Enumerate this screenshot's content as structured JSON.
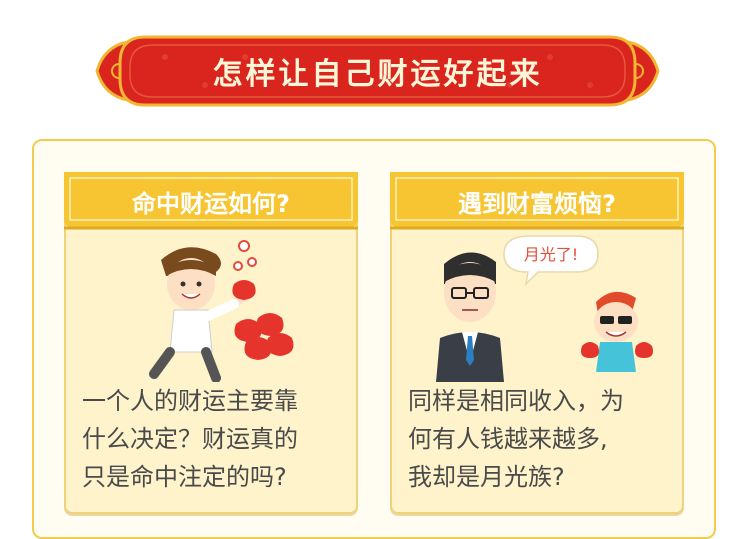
{
  "banner": {
    "title": "怎样让自己财运好起来"
  },
  "cards": [
    {
      "title": "命中财运如何?",
      "text_lines": [
        "一个人的财运主要靠",
        "什么决定？财运真的",
        "只是命中注定的吗?"
      ]
    },
    {
      "title": "遇到财富烦恼?",
      "bubble": "月光了!",
      "text_lines": [
        "同样是相同收入，为",
        "何有人钱越来越多,",
        "我却是月光族?"
      ]
    }
  ],
  "colors": {
    "banner_red": "#d9251d",
    "banner_border": "#f2b632",
    "card_yellow": "#fff3cc",
    "title_bar": "#f6c531"
  }
}
